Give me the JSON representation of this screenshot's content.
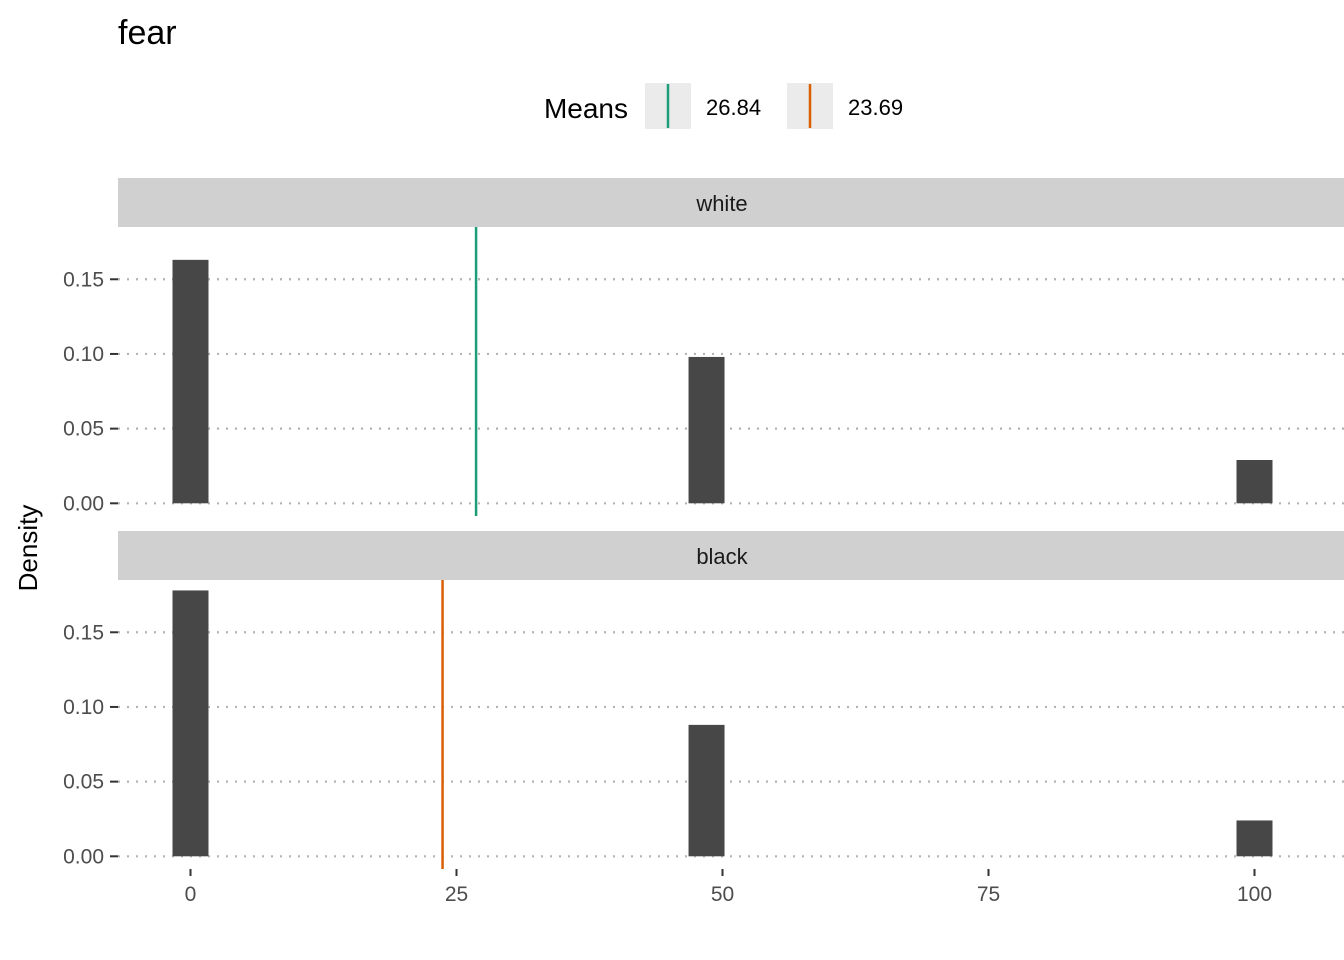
{
  "chart_data": {
    "type": "bar",
    "title": "fear",
    "xlabel": "",
    "ylabel": "Density",
    "xlim": [
      -6.5,
      106.5
    ],
    "ylim": [
      -0.0085,
      0.185
    ],
    "x_ticks": [
      0,
      25,
      50,
      75,
      100
    ],
    "y_ticks": [
      0.0,
      0.05,
      0.1,
      0.15
    ],
    "y_tick_labels": [
      "0.00",
      "0.05",
      "0.10",
      "0.15"
    ],
    "bar_color": "#474747",
    "grid": "horizontal dotted",
    "legend": {
      "title": "Means",
      "placement": "top",
      "entries": [
        {
          "label": "26.84",
          "color": "#1b9e77"
        },
        {
          "label": "23.69",
          "color": "#d95f02"
        }
      ]
    },
    "panels": [
      {
        "strip": "white",
        "bars": [
          {
            "x": 0,
            "y": 0.163
          },
          {
            "x": 48.5,
            "y": 0.098
          },
          {
            "x": 100,
            "y": 0.029
          }
        ],
        "mean": 26.84,
        "mean_color": "#1b9e77"
      },
      {
        "strip": "black",
        "bars": [
          {
            "x": 0,
            "y": 0.178
          },
          {
            "x": 48.5,
            "y": 0.088
          },
          {
            "x": 100,
            "y": 0.024
          }
        ],
        "mean": 23.69,
        "mean_color": "#d95f02"
      }
    ]
  }
}
